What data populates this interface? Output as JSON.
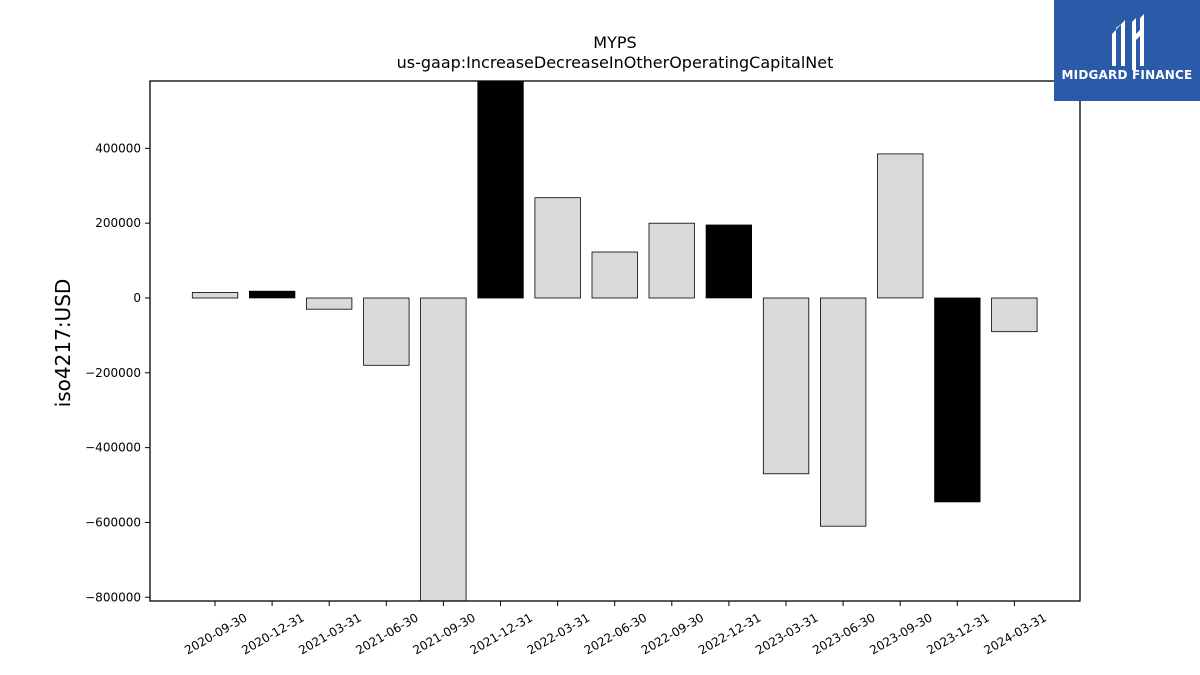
{
  "chart_data": {
    "type": "bar",
    "title": "MYPS",
    "subtitle": "us-gaap:IncreaseDecreaseInOtherOperatingCapitalNet",
    "ylabel": "iso4217:USD",
    "xlabel": "",
    "ylim": [
      -810000,
      580000
    ],
    "yticks": [
      400000,
      200000,
      0,
      -200000,
      -400000,
      -600000,
      -800000
    ],
    "ytick_labels": [
      "400000",
      "200000",
      "0",
      "−200000",
      "−400000",
      "−600000",
      "−800000"
    ],
    "categories": [
      "2020-09-30",
      "2020-12-31",
      "2021-03-31",
      "2021-06-30",
      "2021-09-30",
      "2021-12-31",
      "2022-03-31",
      "2022-06-30",
      "2022-09-30",
      "2022-12-31",
      "2023-03-31",
      "2023-06-30",
      "2023-09-30",
      "2023-12-31",
      "2024-03-31"
    ],
    "values": [
      15000,
      18000,
      -30000,
      -180000,
      -820000,
      590000,
      268000,
      123000,
      200000,
      195000,
      -470000,
      -610000,
      385000,
      -545000,
      -90000
    ],
    "bar_colors": [
      "#d9d9d9",
      "#000000",
      "#d9d9d9",
      "#d9d9d9",
      "#d9d9d9",
      "#000000",
      "#d9d9d9",
      "#d9d9d9",
      "#d9d9d9",
      "#000000",
      "#d9d9d9",
      "#d9d9d9",
      "#d9d9d9",
      "#000000",
      "#d9d9d9"
    ],
    "grid": false
  },
  "logo": {
    "text": "MIDGARD FINANCE",
    "background": "#2a5aa8"
  }
}
